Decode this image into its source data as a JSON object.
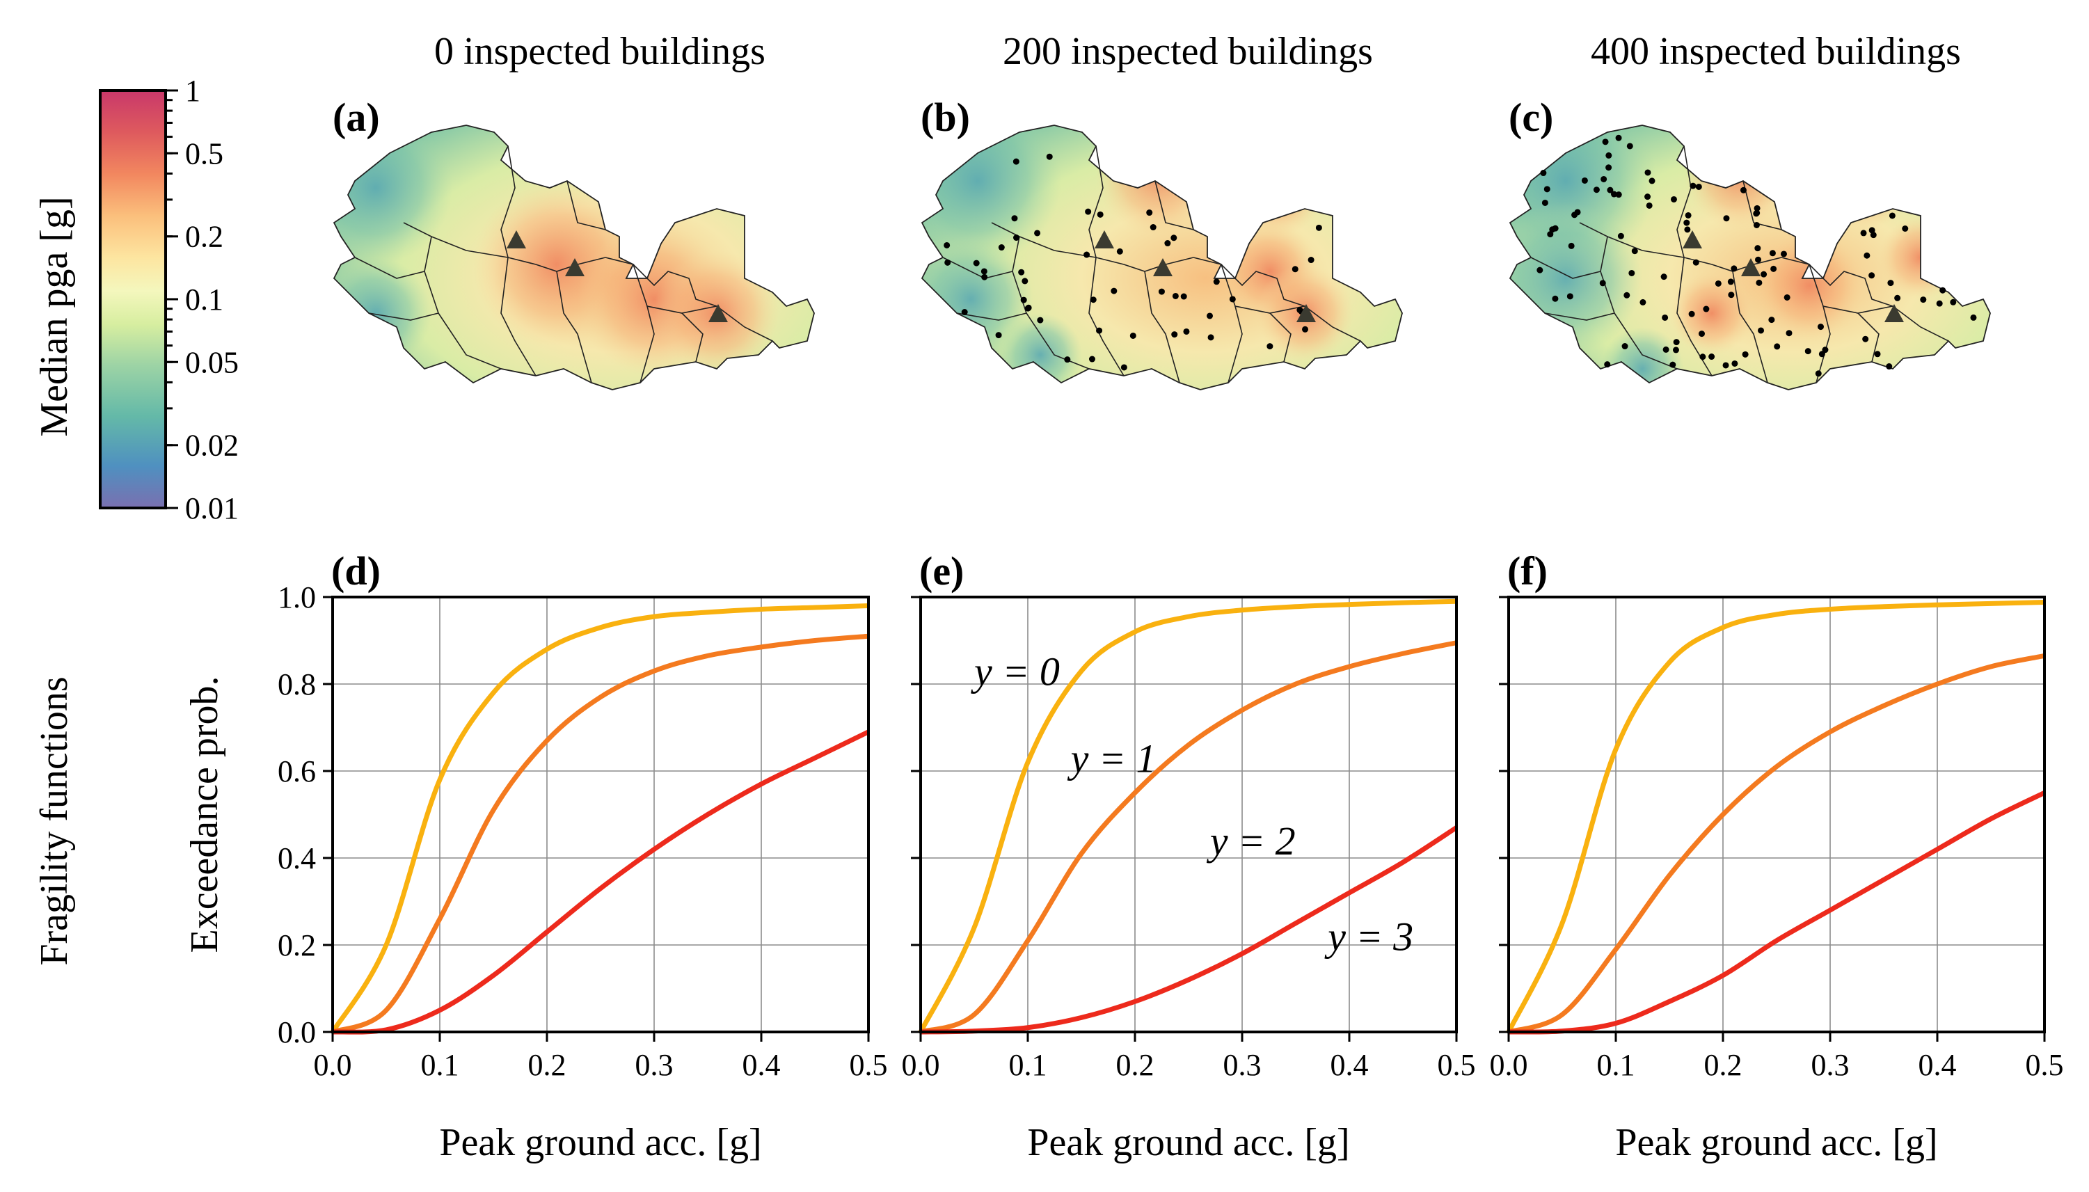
{
  "colorbar": {
    "label": "Median pga [g]",
    "scale": "log",
    "range": [
      0.01,
      1
    ],
    "ticks": [
      "1",
      "0.5",
      "0.2",
      "0.1",
      "0.05",
      "0.02",
      "0.01"
    ],
    "tick_values": [
      1,
      0.5,
      0.2,
      0.1,
      0.05,
      0.02,
      0.01
    ],
    "colormap": [
      "#5e4fa2",
      "#3288bd",
      "#66c2a5",
      "#abdda4",
      "#e6f598",
      "#ffffbf",
      "#fee08b",
      "#fdae61",
      "#f46d43",
      "#d53e4f",
      "#9e0142"
    ]
  },
  "maps": [
    {
      "label": "(a)",
      "title": "0 inspected buildings",
      "inspected": 0
    },
    {
      "label": "(b)",
      "title": "200 inspected buildings",
      "inspected": 200
    },
    {
      "label": "(c)",
      "title": "400 inspected buildings",
      "inspected": 400
    }
  ],
  "row_labels": {
    "top": "Median pga [g]",
    "bottom": "Fragility functions"
  },
  "chart_data": [
    {
      "type": "line",
      "label": "(d)",
      "xlabel": "Peak ground acc. [g]",
      "ylabel": "Exceedance prob.",
      "xlim": [
        0,
        0.5
      ],
      "ylim": [
        0,
        1
      ],
      "xticks": [
        "0.0",
        "0.1",
        "0.2",
        "0.3",
        "0.4",
        "0.5"
      ],
      "yticks": [
        "0.0",
        "0.2",
        "0.4",
        "0.6",
        "0.8",
        "1.0"
      ],
      "grid": true,
      "x": [
        0,
        0.05,
        0.1,
        0.15,
        0.2,
        0.25,
        0.3,
        0.35,
        0.4,
        0.45,
        0.5
      ],
      "series": [
        {
          "color": "#f9b10f",
          "values": [
            0,
            0.2,
            0.58,
            0.78,
            0.88,
            0.93,
            0.955,
            0.965,
            0.972,
            0.976,
            0.98
          ]
        },
        {
          "color": "#f47a1f",
          "values": [
            0,
            0.05,
            0.26,
            0.51,
            0.67,
            0.77,
            0.83,
            0.865,
            0.885,
            0.9,
            0.91
          ]
        },
        {
          "color": "#ed2a1c",
          "values": [
            0,
            0.005,
            0.05,
            0.13,
            0.23,
            0.33,
            0.42,
            0.5,
            0.57,
            0.63,
            0.69
          ]
        }
      ]
    },
    {
      "type": "line",
      "label": "(e)",
      "xlabel": "Peak ground acc. [g]",
      "ylabel": "",
      "xlim": [
        0,
        0.5
      ],
      "ylim": [
        0,
        1
      ],
      "xticks": [
        "0.0",
        "0.1",
        "0.2",
        "0.3",
        "0.4",
        "0.5"
      ],
      "yticks": [],
      "grid": true,
      "annotations": [
        "y = 0",
        "y = 1",
        "y = 2",
        "y = 3"
      ],
      "x": [
        0,
        0.05,
        0.1,
        0.15,
        0.2,
        0.25,
        0.3,
        0.35,
        0.4,
        0.45,
        0.5
      ],
      "series": [
        {
          "name": "y = 0",
          "color": "#f9b10f",
          "values": [
            0,
            0.24,
            0.62,
            0.83,
            0.92,
            0.955,
            0.97,
            0.978,
            0.983,
            0.987,
            0.99
          ]
        },
        {
          "name": "y = 1",
          "color": "#f47a1f",
          "values": [
            0,
            0.04,
            0.21,
            0.41,
            0.55,
            0.66,
            0.74,
            0.8,
            0.84,
            0.87,
            0.895
          ]
        },
        {
          "name": "y = 2",
          "color": "#ed2a1c",
          "values": [
            0,
            0.002,
            0.01,
            0.033,
            0.07,
            0.12,
            0.18,
            0.25,
            0.32,
            0.39,
            0.47
          ]
        },
        {
          "name": "y = 3",
          "color": "#ed2a1c",
          "values": [
            0,
            0.002,
            0.01,
            0.033,
            0.07,
            0.12,
            0.18,
            0.25,
            0.32,
            0.39,
            0.47
          ]
        }
      ]
    },
    {
      "type": "line",
      "label": "(f)",
      "xlabel": "Peak ground acc. [g]",
      "ylabel": "",
      "xlim": [
        0,
        0.5
      ],
      "ylim": [
        0,
        1
      ],
      "xticks": [
        "0.0",
        "0.1",
        "0.2",
        "0.3",
        "0.4",
        "0.5"
      ],
      "yticks": [],
      "grid": true,
      "x": [
        0,
        0.05,
        0.1,
        0.15,
        0.2,
        0.25,
        0.3,
        0.35,
        0.4,
        0.45,
        0.5
      ],
      "series": [
        {
          "color": "#f9b10f",
          "values": [
            0,
            0.25,
            0.65,
            0.85,
            0.93,
            0.96,
            0.972,
            0.978,
            0.982,
            0.985,
            0.988
          ]
        },
        {
          "color": "#f47a1f",
          "values": [
            0,
            0.04,
            0.19,
            0.36,
            0.5,
            0.61,
            0.69,
            0.75,
            0.8,
            0.84,
            0.865
          ]
        },
        {
          "color": "#ed2a1c",
          "values": [
            0,
            0.002,
            0.02,
            0.07,
            0.13,
            0.21,
            0.28,
            0.35,
            0.42,
            0.49,
            0.55
          ]
        }
      ]
    }
  ]
}
